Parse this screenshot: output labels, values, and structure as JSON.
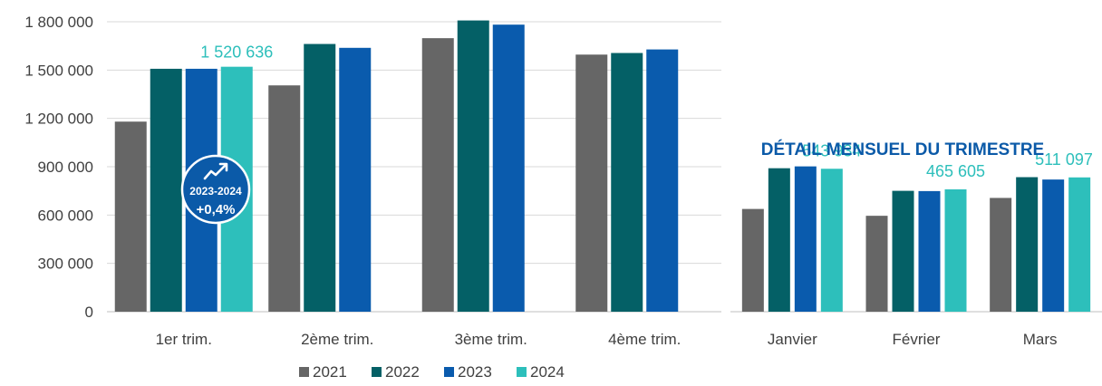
{
  "colors": {
    "2021": "#666666",
    "2022": "#046066",
    "2023": "#0A5BAD",
    "2024": "#2DBFBB",
    "title": "#0B5AA8",
    "badge": "#0B5AA8",
    "axis_text": "#404040",
    "grid": "#D9D9D9"
  },
  "legend": [
    "2021",
    "2022",
    "2023",
    "2024"
  ],
  "monthly_title": "DÉTAIL MENSUEL DU TRIMESTRE",
  "badge": {
    "icon": "trend-up-icon",
    "period": "2023-2024",
    "change": "+0,4%"
  },
  "chart_data": [
    {
      "type": "bar",
      "title": "",
      "categories": [
        "1er trim.",
        "2ème trim.",
        "3ème trim.",
        "4ème trim."
      ],
      "series": [
        {
          "name": "2021",
          "values": [
            1180000,
            1405000,
            1698000,
            1596000
          ]
        },
        {
          "name": "2022",
          "values": [
            1508000,
            1662000,
            1808000,
            1606000
          ]
        },
        {
          "name": "2023",
          "values": [
            1508000,
            1638000,
            1782000,
            1628000
          ]
        },
        {
          "name": "2024",
          "values": [
            1520636,
            null,
            null,
            null
          ]
        }
      ],
      "data_labels": [
        {
          "series": "2024",
          "index": 0,
          "text": "1 520 636"
        }
      ],
      "ylim": [
        0,
        1800000
      ],
      "yticks": [
        0,
        300000,
        600000,
        900000,
        1200000,
        1500000,
        1800000
      ],
      "ytick_labels": [
        "0",
        "300 000",
        "600 000",
        "900 000",
        "1 200 000",
        "1 500 000",
        "1 800 000"
      ],
      "grid": true,
      "legend_position": "bottom"
    },
    {
      "type": "bar",
      "title": "DÉTAIL MENSUEL DU TRIMESTRE",
      "categories": [
        "Janvier",
        "Février",
        "Mars"
      ],
      "series": [
        {
          "name": "2021",
          "values": [
            391000,
            365000,
            433000
          ]
        },
        {
          "name": "2022",
          "values": [
            546000,
            460000,
            512000
          ]
        },
        {
          "name": "2023",
          "values": [
            553000,
            459000,
            503000
          ]
        },
        {
          "name": "2024",
          "values": [
            543934,
            465605,
            511097
          ]
        }
      ],
      "data_labels": [
        {
          "series": "2024",
          "index": 0,
          "text": "543 934"
        },
        {
          "series": "2024",
          "index": 1,
          "text": "465 605"
        },
        {
          "series": "2024",
          "index": 2,
          "text": "511 097"
        }
      ],
      "ylim": [
        0,
        600000
      ],
      "grid": false
    }
  ]
}
